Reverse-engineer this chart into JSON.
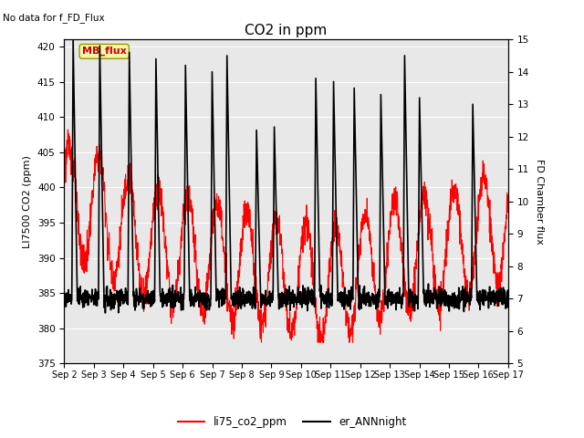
{
  "title": "CO2 in ppm",
  "top_left_text": "No data for f_FD_Flux",
  "ylabel_left": "LI7500 CO2 (ppm)",
  "ylabel_right": "FD Chamber flux",
  "ylim_left": [
    375,
    421
  ],
  "ylim_right": [
    5.0,
    15.0
  ],
  "yticks_left": [
    375,
    380,
    385,
    390,
    395,
    400,
    405,
    410,
    415,
    420
  ],
  "yticks_right": [
    5.0,
    6.0,
    7.0,
    8.0,
    9.0,
    10.0,
    11.0,
    12.0,
    13.0,
    14.0,
    15.0
  ],
  "xtick_labels": [
    "Sep 2",
    "Sep 3",
    "Sep 4",
    "Sep 5",
    "Sep 6",
    "Sep 7",
    "Sep 8",
    "Sep 9",
    "Sep 10",
    "Sep 11",
    "Sep 12",
    "Sep 13",
    "Sep 14",
    "Sep 15",
    "Sep 16",
    "Sep 17"
  ],
  "legend_entries": [
    {
      "label": "li75_co2_ppm",
      "color": "#ff0000",
      "lw": 0.8
    },
    {
      "label": "er_ANNnight",
      "color": "#000000",
      "lw": 1.2
    }
  ],
  "annotation_text": "MB_flux",
  "background_color": "#ffffff",
  "plot_bg_color": "#e8e8e8",
  "grid_color": "#ffffff",
  "figsize": [
    6.4,
    4.8
  ],
  "dpi": 100
}
